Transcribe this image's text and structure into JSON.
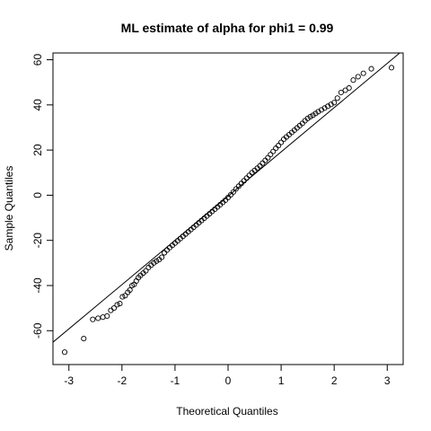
{
  "chart_data": {
    "type": "scatter",
    "title": "ML estimate of alpha for phi1 = 0.99",
    "xlabel": "Theoretical Quantiles",
    "ylabel": "Sample Quantiles",
    "xlim": [
      -3.3,
      3.3
    ],
    "ylim": [
      -75,
      63
    ],
    "xticks": [
      -3,
      -2,
      -1,
      0,
      1,
      2,
      3
    ],
    "yticks": [
      -60,
      -40,
      -20,
      0,
      20,
      40,
      60
    ],
    "grid": false,
    "legend": "none",
    "reference_line": {
      "slope": 19.6,
      "intercept": -0.4
    },
    "series": [
      {
        "points": [
          [
            -3.08,
            -69.5
          ],
          [
            -2.72,
            -63.5
          ],
          [
            -2.55,
            -55
          ],
          [
            -2.45,
            -54.5
          ],
          [
            -2.36,
            -54
          ],
          [
            -2.28,
            -53.5
          ],
          [
            -2.21,
            -51
          ],
          [
            -2.15,
            -50
          ],
          [
            -2.09,
            -48.5
          ],
          [
            -2.04,
            -48
          ],
          [
            -1.99,
            -45
          ],
          [
            -1.94,
            -44.5
          ],
          [
            -1.89,
            -43
          ],
          [
            -1.85,
            -42
          ],
          [
            -1.81,
            -40
          ],
          [
            -1.77,
            -39.5
          ],
          [
            -1.73,
            -38
          ],
          [
            -1.69,
            -36.5
          ],
          [
            -1.65,
            -35.5
          ],
          [
            -1.6,
            -34.5
          ],
          [
            -1.55,
            -33.5
          ],
          [
            -1.5,
            -32
          ],
          [
            -1.45,
            -31
          ],
          [
            -1.4,
            -30
          ],
          [
            -1.35,
            -29.2
          ],
          [
            -1.3,
            -28.5
          ],
          [
            -1.25,
            -27.5
          ],
          [
            -1.2,
            -25.5
          ],
          [
            -1.15,
            -24.3
          ],
          [
            -1.1,
            -23.2
          ],
          [
            -1.05,
            -22.2
          ],
          [
            -1.0,
            -21.2
          ],
          [
            -0.95,
            -20.2
          ],
          [
            -0.9,
            -19.2
          ],
          [
            -0.85,
            -18.2
          ],
          [
            -0.8,
            -17.2
          ],
          [
            -0.75,
            -16.2
          ],
          [
            -0.7,
            -15.2
          ],
          [
            -0.65,
            -14.2
          ],
          [
            -0.6,
            -13.2
          ],
          [
            -0.55,
            -12.2
          ],
          [
            -0.5,
            -11.2
          ],
          [
            -0.45,
            -10.2
          ],
          [
            -0.4,
            -9.2
          ],
          [
            -0.35,
            -8.2
          ],
          [
            -0.3,
            -7.2
          ],
          [
            -0.25,
            -6.2
          ],
          [
            -0.2,
            -5.2
          ],
          [
            -0.15,
            -4.2
          ],
          [
            -0.1,
            -3.2
          ],
          [
            -0.05,
            -2.2
          ],
          [
            0.0,
            -1.0
          ],
          [
            0.05,
            0.2
          ],
          [
            0.1,
            1.4
          ],
          [
            0.15,
            2.8
          ],
          [
            0.2,
            4.0
          ],
          [
            0.25,
            5.2
          ],
          [
            0.3,
            6.4
          ],
          [
            0.35,
            7.6
          ],
          [
            0.4,
            8.8
          ],
          [
            0.45,
            10.0
          ],
          [
            0.5,
            11.0
          ],
          [
            0.55,
            12.0
          ],
          [
            0.6,
            13.0
          ],
          [
            0.65,
            14.2
          ],
          [
            0.7,
            15.4
          ],
          [
            0.75,
            16.6
          ],
          [
            0.8,
            18.0
          ],
          [
            0.85,
            19.4
          ],
          [
            0.9,
            20.8
          ],
          [
            0.95,
            22.0
          ],
          [
            1.0,
            23.4
          ],
          [
            1.05,
            24.8
          ],
          [
            1.1,
            25.8
          ],
          [
            1.15,
            26.8
          ],
          [
            1.2,
            27.8
          ],
          [
            1.25,
            28.8
          ],
          [
            1.3,
            29.8
          ],
          [
            1.35,
            30.8
          ],
          [
            1.4,
            31.8
          ],
          [
            1.45,
            33.0
          ],
          [
            1.5,
            34.0
          ],
          [
            1.55,
            34.8
          ],
          [
            1.6,
            35.4
          ],
          [
            1.65,
            36.2
          ],
          [
            1.7,
            37.0
          ],
          [
            1.76,
            37.8
          ],
          [
            1.82,
            38.6
          ],
          [
            1.88,
            39.4
          ],
          [
            1.94,
            40.2
          ],
          [
            2.0,
            41.0
          ],
          [
            2.06,
            43.0
          ],
          [
            2.13,
            45.5
          ],
          [
            2.21,
            46.5
          ],
          [
            2.28,
            47.5
          ],
          [
            2.36,
            51.0
          ],
          [
            2.45,
            52.5
          ],
          [
            2.55,
            54.0
          ],
          [
            2.7,
            56.0
          ],
          [
            3.08,
            56.5
          ]
        ]
      }
    ]
  }
}
